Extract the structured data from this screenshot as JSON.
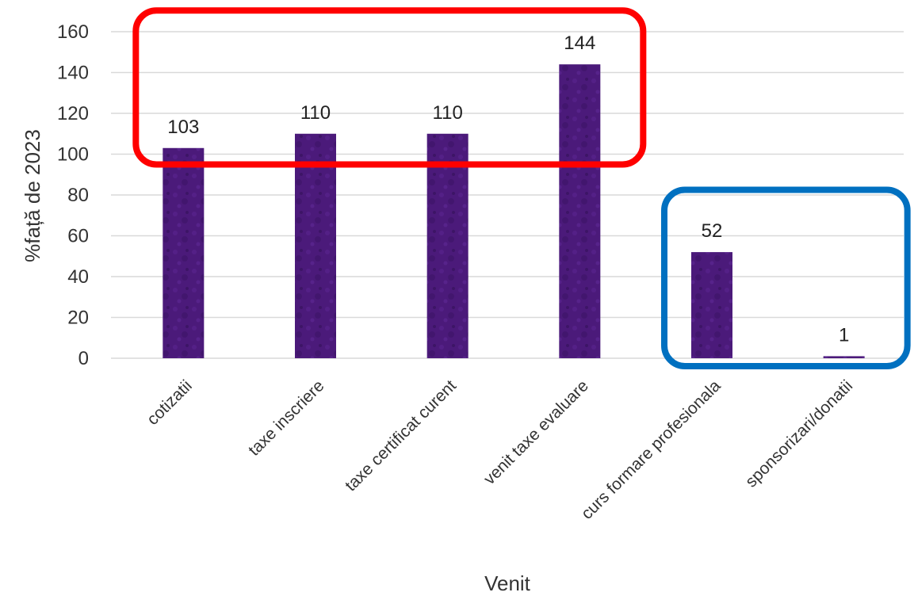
{
  "chart_data": {
    "type": "bar",
    "categories": [
      "cotizatii",
      "taxe inscriere",
      "taxe certificat curent",
      "venit taxe evaluare",
      "curs formare profesionala",
      "sponsorizari/donatii"
    ],
    "values": [
      103,
      110,
      110,
      144,
      52,
      1
    ],
    "data_labels": [
      "103",
      "110",
      "110",
      "144",
      "52",
      "1"
    ],
    "xlabel": "Venit",
    "ylabel": "%față de 2023",
    "ylim": [
      0,
      160
    ],
    "yticks": [
      0,
      20,
      40,
      60,
      80,
      100,
      120,
      140,
      160
    ],
    "grid": true,
    "bar_color": "#4b1a7a",
    "highlight_groups": [
      {
        "name": "red-highlight",
        "color": "#ff0000",
        "categories": [
          "cotizatii",
          "taxe inscriere",
          "taxe certificat curent",
          "venit taxe evaluare"
        ]
      },
      {
        "name": "blue-highlight",
        "color": "#0070c0",
        "categories": [
          "curs formare profesionala",
          "sponsorizari/donatii"
        ]
      }
    ]
  }
}
